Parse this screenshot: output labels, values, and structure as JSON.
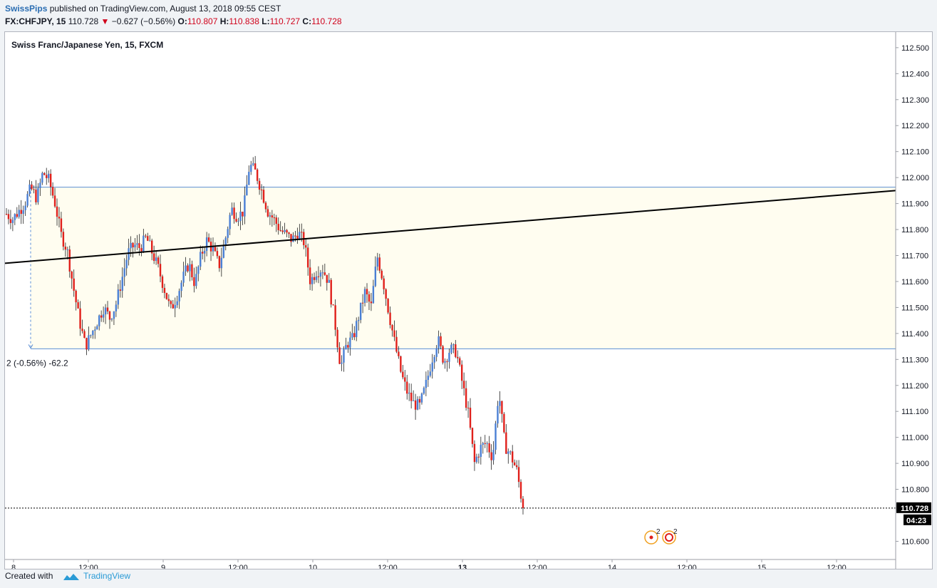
{
  "header": {
    "author": "SwissPips",
    "published": "published on TradingView.com, August 13, 2018 09:55 CEST",
    "symbol": "FX:CHFJPY, 15",
    "last": "110.728",
    "arrow": "▼",
    "change": "−0.627 (−0.56%)",
    "o_label": "O:",
    "o_value": "110.807",
    "h_label": "H:",
    "h_value": "110.838",
    "l_label": "L:",
    "l_value": "110.727",
    "c_label": "C:",
    "c_value": "110.728"
  },
  "footer": {
    "created": "Created with",
    "brand": "TradingView"
  },
  "colors": {
    "up": "#4a7fd4",
    "down": "#e0201b",
    "range_fill": "#fffdf0",
    "range_border": "#5b8fd3",
    "trendline": "#000000"
  },
  "chart_data": {
    "type": "candlestick",
    "title": "Swiss Franc/Japanese Yen, 15, FXCM",
    "y_ticks": [
      "112.500",
      "112.400",
      "112.300",
      "112.200",
      "112.100",
      "112.000",
      "111.900",
      "111.800",
      "111.700",
      "111.600",
      "111.500",
      "111.400",
      "111.300",
      "111.200",
      "111.100",
      "111.000",
      "110.900",
      "110.800",
      "110.600"
    ],
    "ylim": [
      110.53,
      112.56
    ],
    "x_ticks": [
      "8",
      "12:00",
      "9",
      "12:00",
      "10",
      "12:00",
      "13",
      "12:00",
      "14",
      "12:00",
      "15",
      "12:00"
    ],
    "x_ticks_bold": [
      false,
      false,
      false,
      false,
      false,
      false,
      true,
      false,
      false,
      false,
      false,
      false
    ],
    "price_label": "110.728",
    "countdown": "04:23",
    "measure_label": "2 (-0.56%) -62.2",
    "range": {
      "top": 111.963,
      "bottom": 111.341
    },
    "trendline": [
      [
        0,
        111.67
      ],
      [
        1,
        111.95
      ]
    ],
    "events": [
      {
        "icon": "event-icon",
        "count": "2"
      },
      {
        "icon": "news-icon",
        "count": "2"
      }
    ],
    "ohlc_path": [
      111.86,
      111.84,
      111.87,
      111.9,
      111.96,
      111.92,
      112.02,
      111.99,
      111.9,
      111.78,
      111.72,
      111.58,
      111.45,
      111.35,
      111.4,
      111.45,
      111.5,
      111.46,
      111.51,
      111.61,
      111.71,
      111.74,
      111.73,
      111.77,
      111.71,
      111.65,
      111.57,
      111.49,
      111.54,
      111.61,
      111.67,
      111.59,
      111.7,
      111.76,
      111.72,
      111.66,
      111.76,
      111.88,
      111.85,
      111.87,
      112.05,
      112.02,
      111.95,
      111.87,
      111.84,
      111.8,
      111.78,
      111.76,
      111.79,
      111.75,
      111.6,
      111.64,
      111.65,
      111.6,
      111.45,
      111.27,
      111.36,
      111.38,
      111.47,
      111.56,
      111.5,
      111.7,
      111.6,
      111.47,
      111.35,
      111.24,
      111.17,
      111.13,
      111.12,
      111.2,
      111.3,
      111.38,
      111.29,
      111.34,
      111.33,
      111.21,
      111.09,
      110.9,
      110.96,
      110.98,
      110.92,
      111.18,
      110.97,
      110.93,
      110.87,
      110.728
    ]
  }
}
